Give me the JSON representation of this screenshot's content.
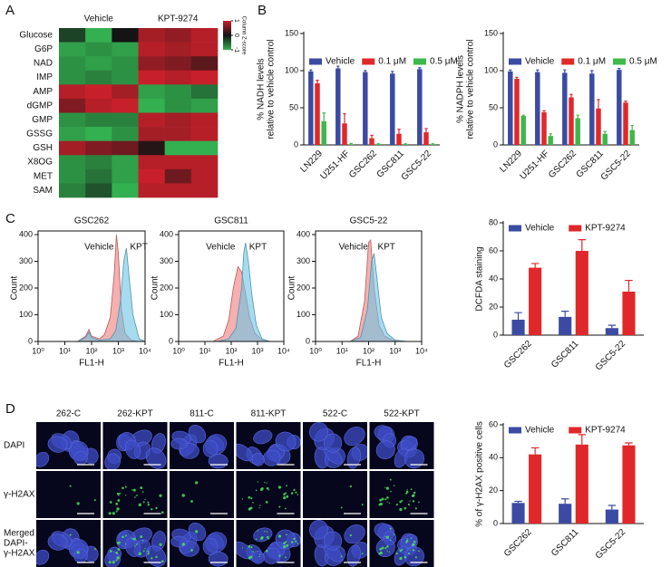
{
  "panel_labels": [
    "A",
    "B",
    "C",
    "D"
  ],
  "chart_data": [
    {
      "type": "heatmap",
      "column_groups": [
        "Vehicle",
        "KPT-9274"
      ],
      "rows": [
        "Glucose",
        "G6P",
        "NAD",
        "IMP",
        "AMP",
        "dGMP",
        "GMP",
        "GSSG",
        "GSH",
        "X8OG",
        "MET",
        "SAM"
      ],
      "values": [
        [
          -0.3,
          -1.3,
          0,
          0.8,
          0.7,
          0.9
        ],
        [
          -0.9,
          -0.8,
          -0.9,
          0.9,
          0.8,
          0.9
        ],
        [
          -0.8,
          -0.9,
          -0.8,
          0.7,
          0.6,
          0.4
        ],
        [
          -0.8,
          -0.7,
          -0.8,
          1,
          0.9,
          1
        ],
        [
          0.9,
          1,
          0.8,
          -0.9,
          -0.8,
          -0.6
        ],
        [
          0.6,
          0.9,
          1.1,
          -1.1,
          -0.8,
          -0.9
        ],
        [
          -0.8,
          -0.7,
          -0.7,
          0.9,
          0.8,
          0.9
        ],
        [
          -0.9,
          -1.2,
          -0.8,
          0.8,
          0.8,
          0.9
        ],
        [
          0.8,
          0.6,
          0.5,
          0.1,
          -1,
          -1
        ],
        [
          -0.8,
          -0.7,
          -0.9,
          0.9,
          0.9,
          0.9
        ],
        [
          -0.8,
          -0.6,
          -0.9,
          1,
          0.5,
          0.9
        ],
        [
          -0.7,
          -0.4,
          -1.1,
          0.9,
          0.9,
          0.9
        ]
      ],
      "colorbar": {
        "title": "Column Z-score",
        "ticks": [
          -1,
          0,
          1
        ],
        "low_color": "#33b050",
        "mid_color": "#141414",
        "high_color": "#c8202a"
      }
    },
    {
      "type": "bar",
      "y_label": [
        "% NADH levels",
        "relative to vehicle control"
      ],
      "categories": [
        "LN229",
        "U251-HF",
        "GSC262",
        "GSC811",
        "GSC5-22"
      ],
      "series": [
        {
          "name": "Vehicle",
          "color": "#3b4ba3",
          "values": [
            99,
            103,
            98,
            96,
            102
          ],
          "errors": [
            2,
            3,
            2,
            3,
            2
          ]
        },
        {
          "name": "0.1 μM",
          "color": "#e0282a",
          "values": [
            83,
            29,
            9,
            15,
            17
          ],
          "errors": [
            4,
            13,
            4,
            6,
            5
          ]
        },
        {
          "name": "0.5 μM",
          "color": "#3db84a",
          "values": [
            32,
            1,
            1,
            1,
            1
          ],
          "errors": [
            11,
            1,
            0.5,
            0.5,
            0.5
          ]
        }
      ],
      "ylim": [
        0,
        150
      ],
      "yticks": [
        0,
        50,
        100,
        150
      ],
      "legend": "top"
    },
    {
      "type": "bar",
      "y_label": [
        "% NADPH levels",
        "relative to vehicle control"
      ],
      "categories": [
        "LN229",
        "U251-HF",
        "GSC262",
        "GSC811",
        "GSC5-22"
      ],
      "series": [
        {
          "name": "Vehicle",
          "color": "#3b4ba3",
          "values": [
            99,
            98,
            97,
            96,
            101
          ],
          "errors": [
            2,
            3,
            4,
            4,
            2
          ]
        },
        {
          "name": "0.1 μM",
          "color": "#e0282a",
          "values": [
            89,
            44,
            64,
            49,
            57
          ],
          "errors": [
            2,
            2,
            4,
            12,
            2
          ]
        },
        {
          "name": "0.5 μM",
          "color": "#3db84a",
          "values": [
            39,
            12,
            36,
            15,
            20
          ],
          "errors": [
            1,
            3,
            4,
            3,
            6
          ]
        }
      ],
      "ylim": [
        0,
        150
      ],
      "yticks": [
        0,
        50,
        100,
        150
      ],
      "legend": "top"
    },
    {
      "type": "area",
      "title": "GSC262",
      "x_label": "FL1-H",
      "y_label": "Count",
      "xscale": "log",
      "xlim": [
        1,
        10000
      ],
      "xticks": [
        {
          "value": 1,
          "label": "10⁰"
        },
        {
          "value": 10,
          "label": "10¹"
        },
        {
          "value": 100,
          "label": "10²"
        },
        {
          "value": 1000,
          "label": "10³"
        },
        {
          "value": 10000,
          "label": "10⁴"
        }
      ],
      "ylim": [
        0,
        400
      ],
      "yticks": [
        0,
        100,
        200,
        300,
        400
      ],
      "series": [
        {
          "name": "Vehicle",
          "color": "#f07b7b",
          "x": [
            30,
            60,
            80,
            100,
            200,
            300,
            500,
            700,
            850,
            1000,
            1300,
            1800,
            3000,
            6000
          ],
          "values": [
            0,
            20,
            45,
            20,
            10,
            25,
            90,
            250,
            400,
            330,
            120,
            30,
            5,
            0
          ]
        },
        {
          "name": "KPT",
          "color": "#6cc4e6",
          "x": [
            30,
            60,
            80,
            100,
            200,
            500,
            800,
            1200,
            1600,
            2000,
            2500,
            3500,
            6000,
            10000
          ],
          "values": [
            0,
            15,
            35,
            15,
            5,
            10,
            40,
            150,
            300,
            350,
            250,
            100,
            10,
            0
          ]
        }
      ]
    },
    {
      "type": "area",
      "title": "GSC811",
      "x_label": "FL1-H",
      "y_label": "Count",
      "xscale": "log",
      "xlim": [
        1,
        10000
      ],
      "xticks": [
        {
          "value": 1,
          "label": "10⁰"
        },
        {
          "value": 10,
          "label": "10¹"
        },
        {
          "value": 100,
          "label": "10²"
        },
        {
          "value": 1000,
          "label": "10³"
        },
        {
          "value": 10000,
          "label": "10⁴"
        }
      ],
      "ylim": [
        0,
        400
      ],
      "yticks": [
        0,
        100,
        200,
        300,
        400
      ],
      "series": [
        {
          "name": "Vehicle",
          "color": "#f07b7b",
          "x": [
            20,
            50,
            80,
            120,
            180,
            250,
            350,
            500,
            800,
            1500,
            3000
          ],
          "values": [
            0,
            20,
            80,
            200,
            280,
            260,
            180,
            90,
            30,
            5,
            0
          ]
        },
        {
          "name": "KPT",
          "color": "#6cc4e6",
          "x": [
            30,
            80,
            150,
            250,
            300,
            350,
            450,
            600,
            900,
            1500,
            3000
          ],
          "values": [
            0,
            10,
            50,
            200,
            330,
            370,
            300,
            180,
            60,
            10,
            0
          ]
        }
      ]
    },
    {
      "type": "area",
      "title": "GSC5-22",
      "x_label": "FL1-H",
      "y_label": "Count",
      "xscale": "log",
      "xlim": [
        1,
        10000
      ],
      "xticks": [
        {
          "value": 1,
          "label": "10⁰"
        },
        {
          "value": 10,
          "label": "10¹"
        },
        {
          "value": 100,
          "label": "10²"
        },
        {
          "value": 1000,
          "label": "10³"
        },
        {
          "value": 10000,
          "label": "10⁴"
        }
      ],
      "ylim": [
        0,
        400
      ],
      "yticks": [
        0,
        100,
        200,
        300,
        400
      ],
      "series": [
        {
          "name": "Vehicle",
          "color": "#f07b7b",
          "x": [
            20,
            40,
            70,
            100,
            120,
            160,
            250,
            400,
            800,
            2000
          ],
          "values": [
            0,
            20,
            150,
            370,
            380,
            200,
            60,
            20,
            5,
            0
          ]
        },
        {
          "name": "KPT",
          "color": "#6cc4e6",
          "x": [
            20,
            50,
            90,
            130,
            160,
            200,
            300,
            500,
            1000,
            3000
          ],
          "values": [
            0,
            15,
            120,
            300,
            330,
            250,
            90,
            30,
            5,
            0
          ]
        }
      ]
    },
    {
      "type": "bar",
      "y_label": [
        "DCFDA staining"
      ],
      "categories": [
        "GSC262",
        "GSC811",
        "GSC5-22"
      ],
      "series": [
        {
          "name": "Vehicle",
          "color": "#3b4ba3",
          "values": [
            11,
            13,
            5
          ],
          "errors": [
            5,
            4,
            2
          ]
        },
        {
          "name": "KPT-9274",
          "color": "#e0282a",
          "values": [
            48,
            60,
            31
          ],
          "errors": [
            3,
            8,
            8
          ]
        }
      ],
      "ylim": [
        0,
        80
      ],
      "yticks": [
        0,
        20,
        40,
        60,
        80
      ],
      "legend": "top"
    },
    {
      "type": "bar",
      "y_label": [
        "% of γ-H2AX positive cells"
      ],
      "categories": [
        "GSC262",
        "GSC811",
        "GSC5-22"
      ],
      "series": [
        {
          "name": "Vehicle",
          "color": "#3b4ba3",
          "values": [
            12.5,
            12,
            8.5
          ],
          "errors": [
            1,
            3,
            2.5
          ]
        },
        {
          "name": "KPT-9274",
          "color": "#e0282a",
          "values": [
            42,
            48,
            47.5
          ],
          "errors": [
            4,
            6,
            1.5
          ]
        }
      ],
      "ylim": [
        0,
        60
      ],
      "yticks": [
        0,
        20,
        40,
        60
      ],
      "legend": "top"
    }
  ],
  "microscopy": {
    "columns": [
      "262-C",
      "262-KPT",
      "811-C",
      "811-KPT",
      "522-C",
      "522-KPT"
    ],
    "rows": [
      [
        "DAPI"
      ],
      [
        "γ-H2AX"
      ],
      [
        "Merged",
        "DAPI-",
        "γ-H2AX"
      ]
    ]
  }
}
